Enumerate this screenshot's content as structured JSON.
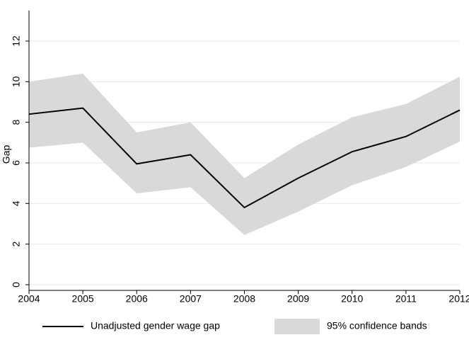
{
  "chart_data": {
    "type": "line",
    "ylabel": "Gap",
    "x": [
      2004,
      2005,
      2006,
      2007,
      2008,
      2009,
      2010,
      2011,
      2012
    ],
    "xlim": [
      2004,
      2012
    ],
    "xticks": [
      2004,
      2005,
      2006,
      2007,
      2008,
      2009,
      2010,
      2011,
      2012
    ],
    "ylim": [
      -0.28,
      13.5
    ],
    "yticks": [
      0,
      2,
      4,
      6,
      8,
      10,
      12
    ],
    "grid": true,
    "legend": "bottom",
    "series": [
      {
        "name": "Unadjusted gender wage gap",
        "color": "#000000",
        "values": [
          8.4,
          8.7,
          5.95,
          6.4,
          3.8,
          5.25,
          6.55,
          7.3,
          8.6
        ]
      },
      {
        "name": "95% confidence bands",
        "color": "#d9d9d9",
        "upper": [
          10.0,
          10.4,
          7.5,
          8.0,
          5.25,
          6.9,
          8.25,
          8.9,
          10.25
        ],
        "lower": [
          6.75,
          7.0,
          4.5,
          4.8,
          2.45,
          3.6,
          4.9,
          5.8,
          7.05
        ]
      }
    ]
  }
}
